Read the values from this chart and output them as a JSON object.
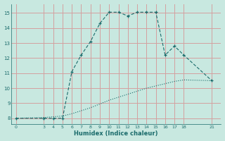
{
  "xlabel": "Humidex (Indice chaleur)",
  "bg_color": "#c8e8e0",
  "grid_color": "#d4a0a0",
  "line_color": "#1a6b6b",
  "x_ticks": [
    0,
    3,
    4,
    5,
    6,
    7,
    8,
    9,
    10,
    11,
    12,
    13,
    14,
    15,
    16,
    17,
    18,
    21
  ],
  "y_ticks": [
    8,
    9,
    10,
    11,
    12,
    13,
    14,
    15
  ],
  "ylim": [
    7.6,
    15.6
  ],
  "xlim": [
    -0.5,
    22.0
  ],
  "curve1_x": [
    0,
    3,
    4,
    5,
    6,
    7,
    8,
    9,
    10,
    11,
    12,
    13,
    14,
    15,
    16,
    17,
    18,
    21
  ],
  "curve1_y": [
    8.0,
    8.0,
    8.0,
    8.0,
    11.1,
    12.2,
    13.1,
    14.3,
    15.05,
    15.05,
    14.8,
    15.05,
    15.05,
    15.05,
    12.2,
    12.8,
    12.2,
    10.5
  ],
  "curve2_x": [
    0,
    3,
    4,
    5,
    6,
    7,
    8,
    9,
    10,
    11,
    12,
    13,
    14,
    15,
    16,
    17,
    18,
    21
  ],
  "curve2_y": [
    8.0,
    8.05,
    8.1,
    8.15,
    8.3,
    8.5,
    8.7,
    8.95,
    9.2,
    9.4,
    9.6,
    9.8,
    10.0,
    10.15,
    10.3,
    10.45,
    10.55,
    10.5
  ]
}
